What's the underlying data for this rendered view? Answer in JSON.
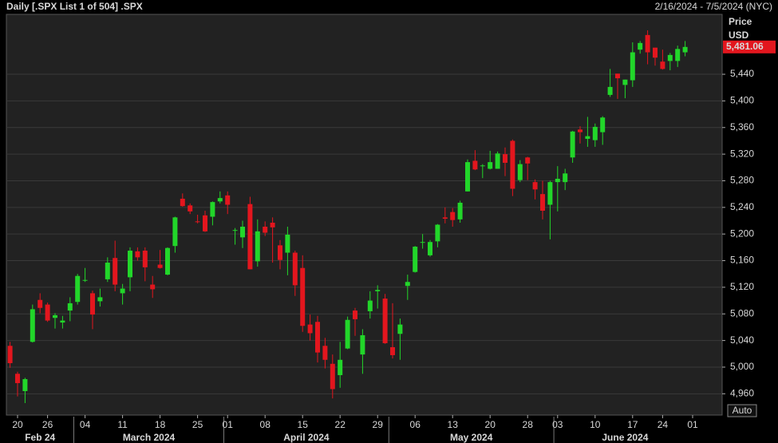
{
  "chart_data": {
    "type": "candlestick",
    "title": "Daily [.SPX List 1 of 504] .SPX",
    "subtitle": "2/16/2024 - 7/5/2024 (NYC)",
    "y_axis_title": "Price",
    "y_axis_unit": "USD",
    "scale_mode": "Auto",
    "up_color": "#22d62a",
    "down_color": "#e3161e",
    "grid": true,
    "categories": [
      null,
      "20",
      null,
      null,
      null,
      "26",
      null,
      null,
      null,
      null,
      "04",
      null,
      null,
      null,
      null,
      "11",
      null,
      null,
      null,
      null,
      "18",
      null,
      null,
      null,
      null,
      "25",
      null,
      null,
      null,
      "01",
      null,
      null,
      null,
      null,
      "08",
      null,
      null,
      null,
      null,
      "15",
      null,
      null,
      null,
      null,
      "22",
      null,
      null,
      null,
      null,
      "29",
      null,
      null,
      null,
      null,
      "06",
      null,
      null,
      null,
      null,
      "13",
      null,
      null,
      null,
      null,
      "20",
      null,
      null,
      null,
      null,
      "28",
      null,
      null,
      null,
      "03",
      null,
      null,
      null,
      null,
      "10",
      null,
      null,
      null,
      null,
      "17",
      null,
      null,
      null,
      "24",
      null,
      null,
      null,
      "01"
    ],
    "month_labels": [
      "Feb 24",
      null,
      null,
      null,
      null,
      null,
      null,
      null,
      null,
      "March 2024",
      null,
      null,
      null,
      null,
      null,
      null,
      null,
      null,
      null,
      null,
      null,
      null,
      null,
      null,
      null,
      null,
      null,
      null,
      null,
      "April 2024",
      null,
      null,
      null,
      null,
      null,
      null,
      null,
      null,
      null,
      null,
      null,
      null,
      null,
      null,
      null,
      null,
      null,
      null,
      null,
      null,
      null,
      "May 2024",
      null,
      null,
      null,
      null,
      null,
      null,
      null,
      null,
      null,
      null,
      null,
      null,
      null,
      null,
      null,
      null,
      null,
      null,
      null,
      null,
      null,
      "June 2024",
      null,
      null,
      null,
      null,
      null,
      null,
      null,
      null,
      null,
      null,
      null,
      null,
      null,
      null,
      null,
      null,
      null,
      null,
      null
    ],
    "open": [
      5032,
      4990,
      4964,
      5038,
      5101,
      5094,
      5074,
      5067,
      5085,
      5098,
      5131,
      5111,
      5099,
      5132,
      5164,
      5111,
      5135,
      5174,
      5175,
      5124,
      5154,
      5139,
      5182,
      5253,
      5243,
      5219,
      5228,
      5226,
      5249,
      5258,
      5205,
      5195,
      5245,
      5159,
      5211,
      5217,
      5183,
      5172,
      5172,
      5149,
      5064,
      5068,
      5032,
      5005,
      4988,
      5028,
      5085,
      5019,
      5084,
      5114,
      5103,
      5030,
      5050,
      5122,
      5143,
      5188,
      5168,
      5189,
      5225,
      5233,
      5222,
      5264,
      5310,
      5303,
      5298,
      5298,
      5320,
      5340,
      5281,
      5315,
      5278,
      5260,
      5244,
      5278,
      5278,
      5315,
      5357,
      5343,
      5341,
      5353,
      5409,
      5441,
      5424,
      5431,
      5477,
      5499,
      5480,
      5459,
      5460,
      5460,
      5473,
      null
    ],
    "high": [
      5038,
      4993,
      4984,
      5094,
      5111,
      5097,
      5081,
      5077,
      5105,
      5140,
      5149,
      5115,
      5118,
      5165,
      5190,
      5125,
      5180,
      5180,
      5180,
      5137,
      5176,
      5180,
      5226,
      5261,
      5246,
      5229,
      5235,
      5249,
      5264,
      5264,
      5209,
      5220,
      5256,
      5222,
      5219,
      5225,
      5191,
      5211,
      5175,
      5168,
      5079,
      5077,
      5044,
      5019,
      5038,
      5076,
      5089,
      5057,
      5114,
      5123,
      5110,
      5096,
      5073,
      5139,
      5182,
      5200,
      5191,
      5215,
      5240,
      5239,
      5250,
      5312,
      5326,
      5305,
      5325,
      5324,
      5330,
      5342,
      5311,
      5316,
      5282,
      5280,
      5280,
      5302,
      5298,
      5355,
      5362,
      5376,
      5366,
      5377,
      5448,
      5441,
      5432,
      5488,
      5490,
      5506,
      5480,
      5477,
      5472,
      5483,
      5490,
      null
    ],
    "low": [
      4999,
      4956,
      4946,
      5037,
      5081,
      5068,
      5058,
      5058,
      5069,
      5094,
      5128,
      5057,
      5091,
      5128,
      5114,
      5094,
      5114,
      5160,
      5129,
      5104,
      5148,
      5138,
      5172,
      5241,
      5230,
      5216,
      5203,
      5213,
      5246,
      5230,
      5184,
      5179,
      5147,
      5151,
      5197,
      5157,
      5147,
      5138,
      5107,
      5053,
      5040,
      5007,
      4998,
      4953,
      4969,
      5027,
      5047,
      4990,
      5073,
      5088,
      5035,
      5013,
      5011,
      5101,
      5142,
      5178,
      5166,
      5180,
      5216,
      5211,
      5217,
      5264,
      5296,
      5284,
      5297,
      5298,
      5287,
      5257,
      5278,
      5281,
      5252,
      5222,
      5192,
      5234,
      5266,
      5307,
      5336,
      5331,
      5331,
      5334,
      5406,
      5403,
      5404,
      5421,
      5471,
      5455,
      5453,
      5447,
      5446,
      5451,
      5467,
      null
    ],
    "close": [
      5006,
      4976,
      4982,
      5087,
      5089,
      5070,
      5078,
      5070,
      5096,
      5137,
      5131,
      5079,
      5105,
      5157,
      5124,
      5118,
      5175,
      5165,
      5150,
      5117,
      5149,
      5179,
      5225,
      5242,
      5234,
      5218,
      5204,
      5248,
      5254,
      5244,
      5206,
      5211,
      5147,
      5204,
      5202,
      5210,
      5161,
      5199,
      5123,
      5062,
      5051,
      5022,
      5011,
      4967,
      5011,
      5071,
      5072,
      5048,
      5100,
      5116,
      5036,
      5018,
      5064,
      5128,
      5181,
      5188,
      5188,
      5214,
      5223,
      5221,
      5247,
      5308,
      5297,
      5303,
      5308,
      5321,
      5307,
      5268,
      5305,
      5306,
      5267,
      5235,
      5278,
      5283,
      5291,
      5354,
      5353,
      5347,
      5361,
      5375,
      5421,
      5434,
      5432,
      5473,
      5487,
      5473,
      5465,
      5448,
      5469,
      5478,
      5481.06,
      null
    ],
    "last_price": {
      "value": 5481.06,
      "label": "5,481.06"
    },
    "ylim": [
      4928,
      5530
    ],
    "yticks": [
      {
        "value": 4960,
        "label": "4,960"
      },
      {
        "value": 5000,
        "label": "5,000"
      },
      {
        "value": 5040,
        "label": "5,040"
      },
      {
        "value": 5080,
        "label": "5,080"
      },
      {
        "value": 5120,
        "label": "5,120"
      },
      {
        "value": 5160,
        "label": "5,160"
      },
      {
        "value": 5200,
        "label": "5,200"
      },
      {
        "value": 5240,
        "label": "5,240"
      },
      {
        "value": 5280,
        "label": "5,280"
      },
      {
        "value": 5320,
        "label": "5,320"
      },
      {
        "value": 5360,
        "label": "5,360"
      },
      {
        "value": 5400,
        "label": "5,400"
      },
      {
        "value": 5440,
        "label": "5,440"
      }
    ]
  }
}
